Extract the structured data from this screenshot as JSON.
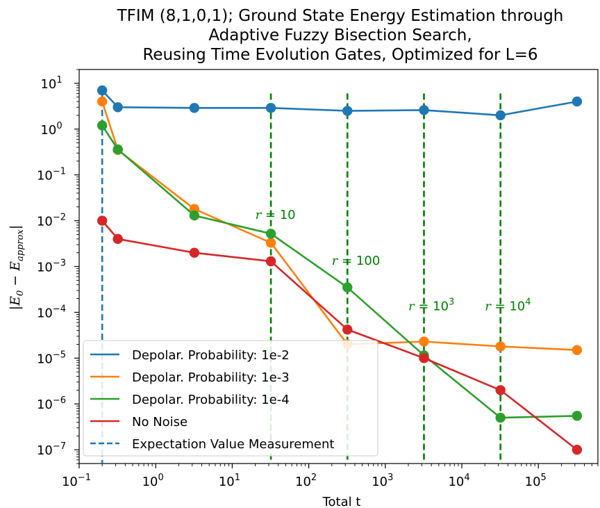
{
  "chart_data": {
    "type": "line",
    "title": [
      "TFIM (8,1,0,1); Ground State Energy Estimation through",
      "Adaptive Fuzzy Bisection Search,",
      "Reusing Time Evolution Gates, Optimized for L=6"
    ],
    "xlabel": "Total t",
    "ylabel": "|E_0 − E_approx|",
    "xscale": "log",
    "yscale": "log",
    "xlim": [
      0.1,
      600000
    ],
    "ylim": [
      5e-08,
      20
    ],
    "x_ticks": [
      {
        "value": 0.1,
        "base": "10",
        "exp": "−1"
      },
      {
        "value": 1,
        "base": "10",
        "exp": "0"
      },
      {
        "value": 10,
        "base": "10",
        "exp": "1"
      },
      {
        "value": 100,
        "base": "10",
        "exp": "2"
      },
      {
        "value": 1000,
        "base": "10",
        "exp": "3"
      },
      {
        "value": 10000,
        "base": "10",
        "exp": "4"
      },
      {
        "value": 100000,
        "base": "10",
        "exp": "5"
      }
    ],
    "y_ticks": [
      {
        "value": 10,
        "base": "10",
        "exp": "1"
      },
      {
        "value": 1,
        "base": "10",
        "exp": "0"
      },
      {
        "value": 0.1,
        "base": "10",
        "exp": "−1"
      },
      {
        "value": 0.01,
        "base": "10",
        "exp": "−2"
      },
      {
        "value": 0.001,
        "base": "10",
        "exp": "−3"
      },
      {
        "value": 0.0001,
        "base": "10",
        "exp": "−4"
      },
      {
        "value": 1e-05,
        "base": "10",
        "exp": "−5"
      },
      {
        "value": 1e-06,
        "base": "10",
        "exp": "−6"
      },
      {
        "value": 1e-07,
        "base": "10",
        "exp": "−7"
      }
    ],
    "series": [
      {
        "name": "Depolar. Probability: 1e-2",
        "color": "#1f77b4",
        "x": [
          0.2,
          0.32,
          3.2,
          32,
          320,
          3200,
          32000,
          320000
        ],
        "y": [
          7,
          3.0,
          2.9,
          2.9,
          2.5,
          2.6,
          2.0,
          4.0
        ]
      },
      {
        "name": "Depolar. Probability: 1e-3",
        "color": "#ff7f0e",
        "x": [
          0.2,
          0.32,
          3.2,
          32,
          320,
          3200,
          32000,
          320000
        ],
        "y": [
          4.0,
          0.35,
          0.018,
          0.0033,
          2e-05,
          2.3e-05,
          1.8e-05,
          1.5e-05
        ]
      },
      {
        "name": "Depolar. Probability: 1e-4",
        "color": "#2ca02c",
        "x": [
          0.2,
          0.32,
          3.2,
          32,
          320,
          3200,
          32000,
          320000
        ],
        "y": [
          1.2,
          0.36,
          0.013,
          0.0052,
          0.00035,
          1.15e-05,
          5e-07,
          5.5e-07
        ]
      },
      {
        "name": "No Noise",
        "color": "#d62728",
        "x": [
          0.2,
          0.32,
          3.2,
          32,
          320,
          3200,
          32000,
          320000
        ],
        "y": [
          0.01,
          0.004,
          0.002,
          0.0013,
          4.2e-05,
          1e-05,
          2e-06,
          1e-07
        ]
      }
    ],
    "expectation_line": {
      "name": "Expectation Value Measurement",
      "color": "#1f77b4",
      "x": 0.2,
      "y_range": [
        5e-08,
        7
      ]
    },
    "r_lines": [
      {
        "x": 32,
        "y_top": 6,
        "y_bottom": 5e-08,
        "label": "r = 10",
        "label_x": 20,
        "label_y": 0.011,
        "base": "10",
        "exp": ""
      },
      {
        "x": 320,
        "y_top": 6,
        "y_bottom": 5e-08,
        "label": "r = 100",
        "label_x": 200,
        "label_y": 0.0011,
        "base": "100",
        "exp": ""
      },
      {
        "x": 3200,
        "y_top": 6,
        "y_bottom": 5e-08,
        "label": "r = 10^3",
        "label_x": 2000,
        "label_y": 0.00011,
        "base": "10",
        "exp": "3"
      },
      {
        "x": 32000,
        "y_top": 6,
        "y_bottom": 5e-08,
        "label": "r = 10^4",
        "label_x": 20000,
        "label_y": 0.00011,
        "base": "10",
        "exp": "4"
      }
    ],
    "r_line_color": "#008000",
    "legend": {
      "placement": "lower-left",
      "entries": [
        "Depolar. Probability: 1e-2",
        "Depolar. Probability: 1e-3",
        "Depolar. Probability: 1e-4",
        "No Noise",
        "Expectation Value Measurement"
      ]
    },
    "grid": false
  }
}
